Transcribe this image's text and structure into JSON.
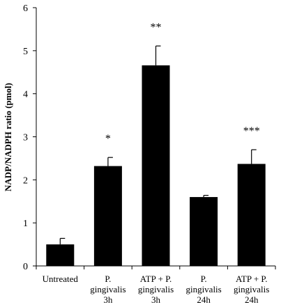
{
  "chart_data": {
    "type": "bar",
    "categories": [
      [
        "Untreated"
      ],
      [
        "P.",
        "gingivalis",
        "3h"
      ],
      [
        "ATP + P.",
        "gingivalis",
        "3h"
      ],
      [
        "P.",
        "gingivalis",
        "24h"
      ],
      [
        "ATP + P.",
        "gingivalis",
        "24h"
      ]
    ],
    "values": [
      0.5,
      2.32,
      4.66,
      1.6,
      2.37
    ],
    "errors": [
      0.14,
      0.2,
      0.45,
      0.04,
      0.33
    ],
    "annotations": [
      "",
      "*",
      "**",
      "",
      "***"
    ],
    "ylabel": "NADP/NADPH ratio (pmol)",
    "xlabel": "",
    "ylim": [
      0,
      6
    ],
    "yticks": [
      0,
      1,
      2,
      3,
      4,
      5,
      6
    ],
    "bar_color": "#000000",
    "grid": false
  }
}
